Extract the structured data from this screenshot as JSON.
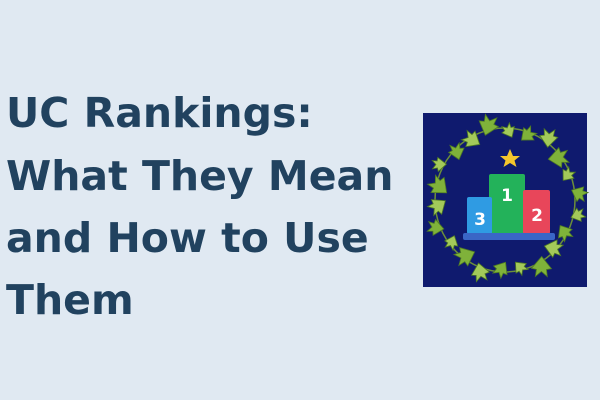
{
  "headline": {
    "lines": [
      "UC Rankings:",
      "What They Mean",
      "and How to Use",
      "Them"
    ]
  },
  "podium": {
    "first": "1",
    "second": "2",
    "third": "3"
  }
}
